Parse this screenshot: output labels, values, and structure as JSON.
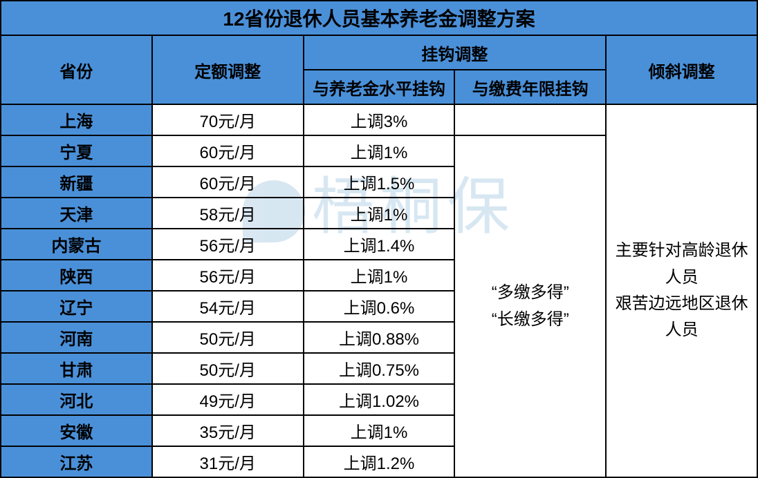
{
  "title": "12省份退休人员基本养老金调整方案",
  "headers": {
    "province": "省份",
    "fixed_adjust": "定额调整",
    "linked_adjust": "挂钩调整",
    "pension_linked": "与养老金水平挂钩",
    "years_linked": "与缴费年限挂钩",
    "tilt_adjust": "倾斜调整"
  },
  "rows": [
    {
      "province": "上海",
      "fixed": "70元/月",
      "pension": "上调3%"
    },
    {
      "province": "宁夏",
      "fixed": "60元/月",
      "pension": "上调1%"
    },
    {
      "province": "新疆",
      "fixed": "60元/月",
      "pension": "上调1.5%"
    },
    {
      "province": "天津",
      "fixed": "58元/月",
      "pension": "上调1%"
    },
    {
      "province": "内蒙古",
      "fixed": "56元/月",
      "pension": "上调1.4%"
    },
    {
      "province": "陕西",
      "fixed": "56元/月",
      "pension": "上调1%"
    },
    {
      "province": "辽宁",
      "fixed": "54元/月",
      "pension": "上调0.6%"
    },
    {
      "province": "河南",
      "fixed": "50元/月",
      "pension": "上调0.88%"
    },
    {
      "province": "甘肃",
      "fixed": "50元/月",
      "pension": "上调0.75%"
    },
    {
      "province": "河北",
      "fixed": "49元/月",
      "pension": "上调1.02%"
    },
    {
      "province": "安徽",
      "fixed": "35元/月",
      "pension": "上调1%"
    },
    {
      "province": "江苏",
      "fixed": "31元/月",
      "pension": "上调1.2%"
    }
  ],
  "years_linked_text_line1": "“多缴多得”",
  "years_linked_text_line2": "“长缴多得”",
  "tilt_text_line1": "主要针对高龄退休人员",
  "tilt_text_line2": "艰苦边远地区退休人员",
  "watermark_text": "梧桐保",
  "colors": {
    "header_bg": "#4a90d9",
    "border": "#000000",
    "text": "#000000",
    "watermark": "#b8d4e8"
  },
  "table_type": "table",
  "font_sizes": {
    "title": 28,
    "body": 24,
    "watermark": 90
  }
}
